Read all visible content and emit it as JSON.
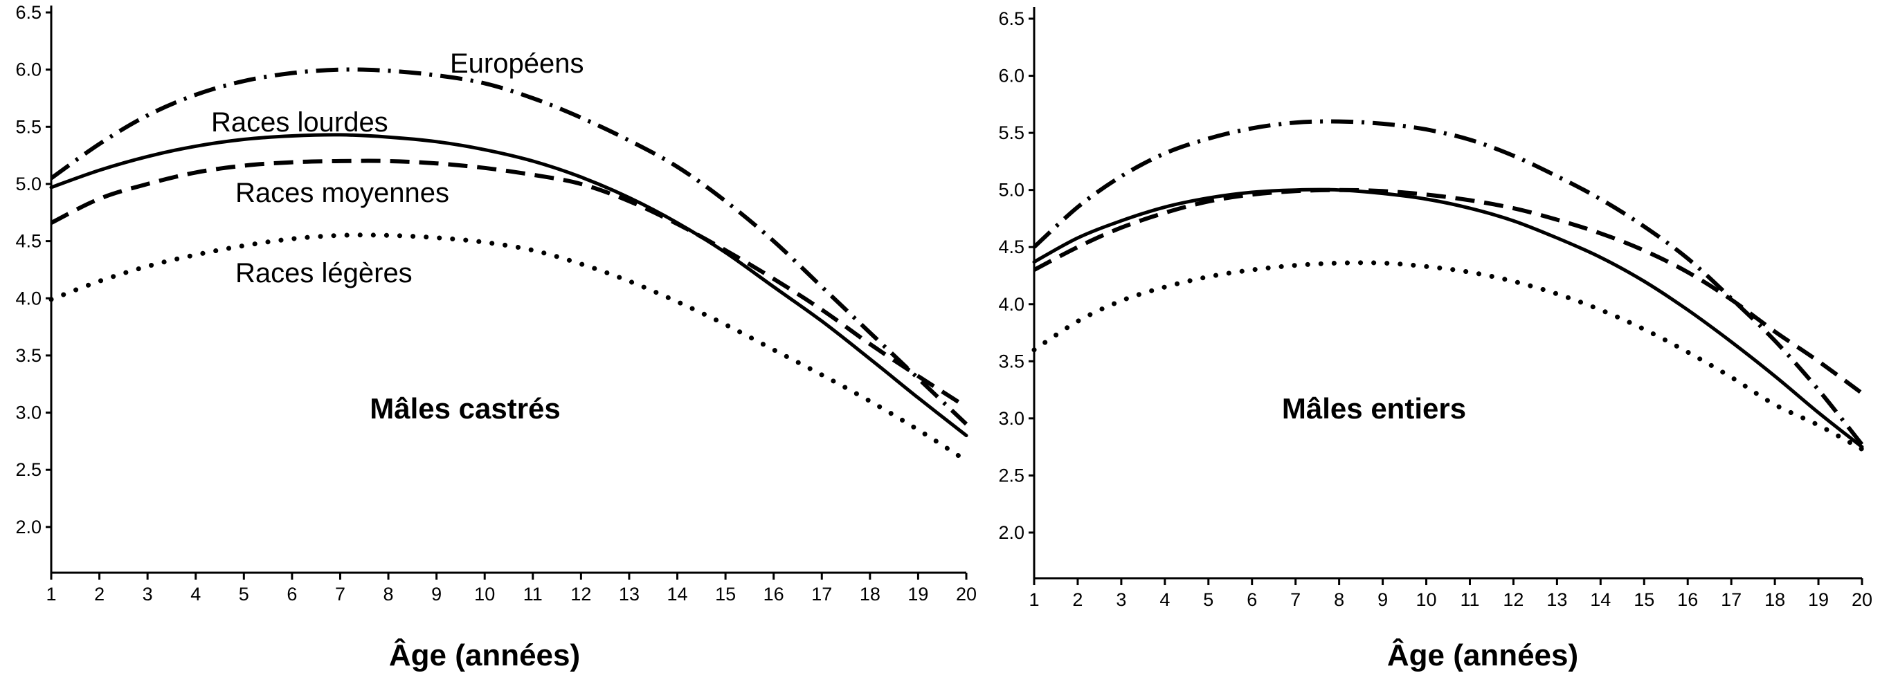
{
  "chart_data": [
    {
      "type": "line",
      "title": "Mâles castrés",
      "xlabel": "Âge (années)",
      "ylabel": "",
      "xlim": [
        1,
        20
      ],
      "ylim": [
        1.6,
        6.6
      ],
      "xticks": [
        "1",
        "2",
        "3",
        "4",
        "5",
        "6",
        "7",
        "8",
        "9",
        "10",
        "11",
        "12",
        "13",
        "14",
        "15",
        "16",
        "17",
        "18",
        "19",
        "20"
      ],
      "yticks": [
        "2.0",
        "2.5",
        "3.0",
        "3.5",
        "4.0",
        "4.5",
        "5.0",
        "5.5",
        "6.0",
        "6.5"
      ],
      "x": [
        1,
        2,
        3,
        4,
        5,
        6,
        7,
        8,
        9,
        10,
        11,
        12,
        13,
        14,
        15,
        16,
        17,
        18,
        19,
        20
      ],
      "series": [
        {
          "name": "Européens",
          "style": "dashdot",
          "values": [
            5.05,
            5.35,
            5.6,
            5.78,
            5.9,
            5.97,
            6.0,
            5.99,
            5.95,
            5.88,
            5.75,
            5.58,
            5.38,
            5.15,
            4.85,
            4.5,
            4.1,
            3.7,
            3.3,
            2.9
          ]
        },
        {
          "name": "Races lourdes",
          "style": "solid",
          "values": [
            4.97,
            5.12,
            5.24,
            5.33,
            5.39,
            5.42,
            5.43,
            5.41,
            5.37,
            5.3,
            5.2,
            5.06,
            4.88,
            4.66,
            4.4,
            4.1,
            3.8,
            3.47,
            3.13,
            2.8
          ]
        },
        {
          "name": "Races moyennes",
          "style": "dashed",
          "values": [
            4.66,
            4.87,
            5.0,
            5.1,
            5.16,
            5.19,
            5.2,
            5.2,
            5.18,
            5.14,
            5.08,
            5.0,
            4.85,
            4.65,
            4.42,
            4.17,
            3.9,
            3.6,
            3.32,
            3.05
          ]
        },
        {
          "name": "Races légères",
          "style": "dotted",
          "values": [
            3.99,
            4.15,
            4.28,
            4.38,
            4.46,
            4.52,
            4.55,
            4.55,
            4.53,
            4.49,
            4.42,
            4.3,
            4.15,
            3.97,
            3.77,
            3.55,
            3.33,
            3.1,
            2.85,
            2.58
          ]
        }
      ],
      "labels_shown": [
        "Européens",
        "Races lourdes",
        "Races moyennes",
        "Races légères"
      ]
    },
    {
      "type": "line",
      "title": "Mâles entiers",
      "xlabel": "Âge (années)",
      "ylabel": "",
      "xlim": [
        1,
        20
      ],
      "ylim": [
        1.6,
        6.6
      ],
      "xticks": [
        "1",
        "2",
        "3",
        "4",
        "5",
        "6",
        "7",
        "8",
        "9",
        "10",
        "11",
        "12",
        "13",
        "14",
        "15",
        "16",
        "17",
        "18",
        "19",
        "20"
      ],
      "yticks": [
        "2.0",
        "2.5",
        "3.0",
        "3.5",
        "4.0",
        "4.5",
        "5.0",
        "5.5",
        "6.0",
        "6.5"
      ],
      "x": [
        1,
        2,
        3,
        4,
        5,
        6,
        7,
        8,
        9,
        10,
        11,
        12,
        13,
        14,
        15,
        16,
        17,
        18,
        19,
        20
      ],
      "series": [
        {
          "name": "Européens",
          "style": "dashdot",
          "values": [
            4.5,
            4.85,
            5.12,
            5.32,
            5.45,
            5.54,
            5.59,
            5.6,
            5.58,
            5.53,
            5.44,
            5.3,
            5.12,
            4.92,
            4.68,
            4.4,
            4.05,
            3.68,
            3.25,
            2.77
          ]
        },
        {
          "name": "Races lourdes",
          "style": "solid",
          "values": [
            4.37,
            4.58,
            4.73,
            4.85,
            4.93,
            4.98,
            5.0,
            5.0,
            4.97,
            4.92,
            4.84,
            4.73,
            4.58,
            4.41,
            4.2,
            3.95,
            3.67,
            3.37,
            3.05,
            2.75
          ]
        },
        {
          "name": "Races moyennes",
          "style": "dashed",
          "values": [
            4.3,
            4.5,
            4.67,
            4.8,
            4.9,
            4.96,
            4.99,
            5.0,
            4.99,
            4.96,
            4.91,
            4.84,
            4.74,
            4.62,
            4.47,
            4.28,
            4.04,
            3.76,
            3.5,
            3.22
          ]
        },
        {
          "name": "Races légères",
          "style": "dotted",
          "values": [
            3.6,
            3.85,
            4.03,
            4.15,
            4.24,
            4.3,
            4.34,
            4.36,
            4.36,
            4.33,
            4.28,
            4.2,
            4.09,
            3.95,
            3.78,
            3.58,
            3.36,
            3.12,
            2.94,
            2.73
          ]
        }
      ],
      "labels_shown": []
    }
  ]
}
